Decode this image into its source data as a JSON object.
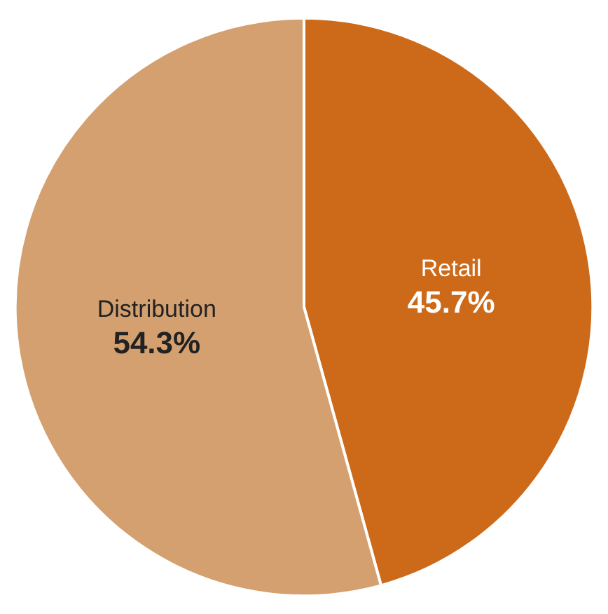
{
  "chart_data": {
    "type": "pie",
    "categories": [
      "Retail",
      "Distribution"
    ],
    "values": [
      45.7,
      54.3
    ],
    "value_labels": [
      "45.7%",
      "54.3%"
    ],
    "colors": [
      "#cc6a1a",
      "#d4a070"
    ]
  }
}
